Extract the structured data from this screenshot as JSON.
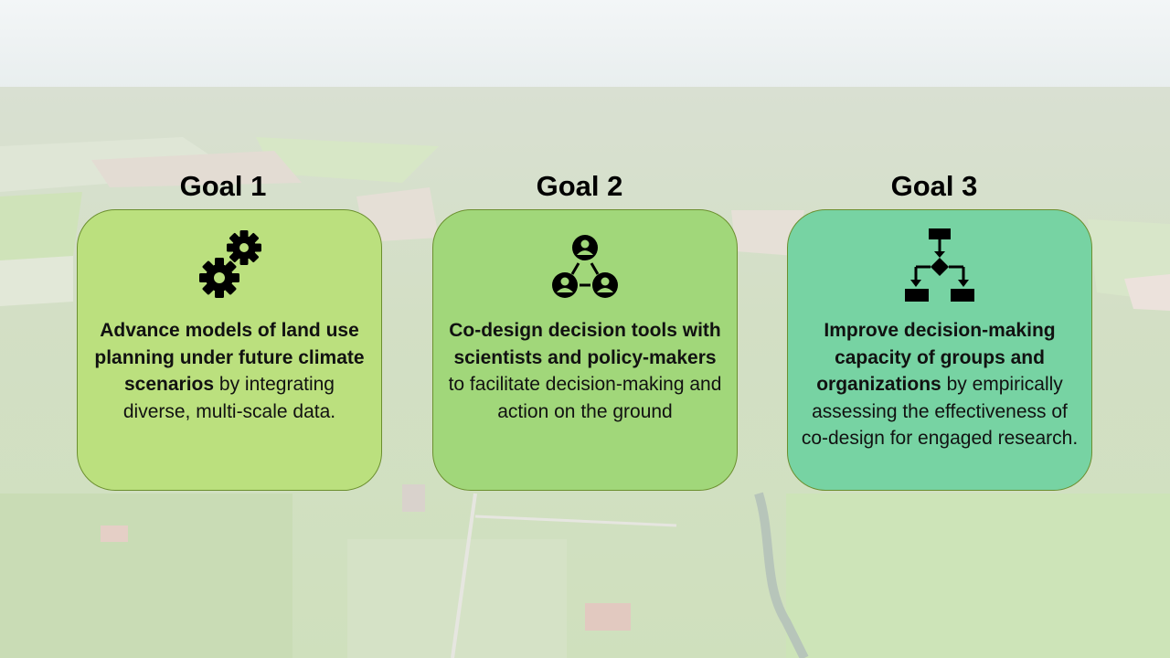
{
  "colors": {
    "card1": "#bbe07e",
    "card2": "#a1d77a",
    "card3": "#77d3a3",
    "icon": "#000000"
  },
  "goals": [
    {
      "title": "Goal 1",
      "icon": "gears-icon",
      "bold": "Advance models of land use planning under future climate scenarios",
      "rest": " by integrating diverse, multi-scale data."
    },
    {
      "title": "Goal 2",
      "icon": "people-network-icon",
      "bold": "Co-design decision tools with scientists and policy-makers",
      "rest": " to facilitate decision-making and action on the ground"
    },
    {
      "title": "Goal 3",
      "icon": "flowchart-icon",
      "bold": "Improve decision-making capacity of groups and organizations",
      "rest": " by empirically assessing the effectiveness of co-design for engaged research."
    }
  ]
}
